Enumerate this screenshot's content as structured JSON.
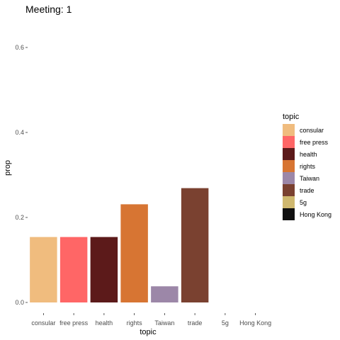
{
  "chart_data": {
    "type": "bar",
    "title": "Meeting: 1",
    "xlabel": "topic",
    "ylabel": "prop",
    "categories": [
      "consular",
      "free press",
      "health",
      "rights",
      "Taiwan",
      "trade",
      "5g",
      "Hong Kong"
    ],
    "values": [
      0.154,
      0.154,
      0.154,
      0.231,
      0.038,
      0.269,
      0.0,
      0.0
    ],
    "colors": [
      "#f0bc7e",
      "#ff6666",
      "#5c1a1a",
      "#d77533",
      "#9c87a8",
      "#7a4130",
      "#cfb86f",
      "#111111"
    ],
    "ylim": [
      0,
      0.6
    ],
    "yticks": [
      0.0,
      0.2,
      0.4,
      0.6
    ],
    "ytick_labels": [
      "0.0",
      "0.2",
      "0.4",
      "0.6"
    ],
    "grid": false,
    "legend": {
      "title": "topic",
      "position": "right",
      "entries": [
        "consular",
        "free press",
        "health",
        "rights",
        "Taiwan",
        "trade",
        "5g",
        "Hong Kong"
      ]
    }
  }
}
